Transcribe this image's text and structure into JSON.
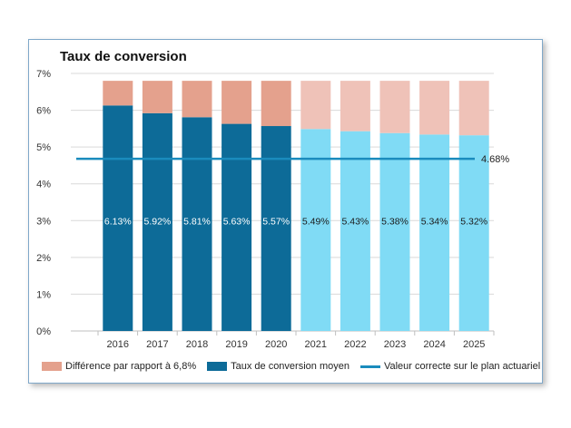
{
  "chart_data": {
    "type": "bar",
    "title": "Taux de conversion",
    "categories": [
      "2016",
      "2017",
      "2018",
      "2019",
      "2020",
      "2021",
      "2022",
      "2023",
      "2024",
      "2025"
    ],
    "series": [
      {
        "name": "Taux de conversion moyen",
        "values": [
          6.13,
          5.92,
          5.81,
          5.63,
          5.57,
          5.49,
          5.43,
          5.38,
          5.34,
          5.32
        ],
        "stack": true
      },
      {
        "name": "Différence par rapport à 6,8%",
        "values": [
          0.67,
          0.88,
          0.99,
          1.17,
          1.23,
          1.31,
          1.37,
          1.42,
          1.46,
          1.48
        ],
        "stack": true
      },
      {
        "name": "Valeur correcte sur le plan actuariel",
        "type": "line",
        "value": 4.68
      }
    ],
    "data_labels": [
      "6.13%",
      "5.92%",
      "5.81%",
      "5.63%",
      "5.57%",
      "5.49%",
      "5.43%",
      "5.38%",
      "5.34%",
      "5.32%"
    ],
    "line_label": "4.68%",
    "y_ticks": [
      "0%",
      "1%",
      "2%",
      "3%",
      "4%",
      "5%",
      "6%",
      "7%"
    ],
    "ylim": [
      0,
      7
    ],
    "grid": true,
    "legend_position": "bottom",
    "colors": {
      "base_historic": "#0d6b98",
      "base_projected": "#80dbf5",
      "diff_historic": "#e4a18d",
      "diff_projected": "#efc2b8",
      "line": "#1a8bbd",
      "grid": "#d9d9d9"
    }
  },
  "legend": {
    "items": [
      {
        "label": "Différence par rapport à 6,8%",
        "color": "#e4a18d",
        "kind": "box"
      },
      {
        "label": "Taux de conversion moyen",
        "color": "#0d6b98",
        "kind": "box"
      },
      {
        "label": "Valeur correcte sur le plan actuariel",
        "color": "#1a8bbd",
        "kind": "line"
      }
    ]
  }
}
